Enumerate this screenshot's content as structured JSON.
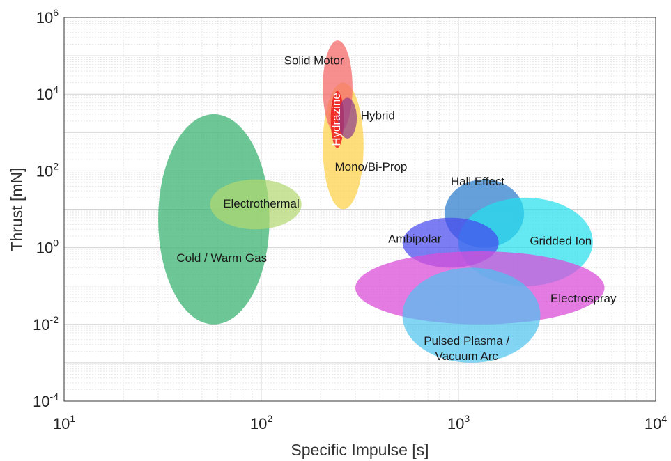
{
  "chart_data": {
    "type": "scatter",
    "title": "",
    "xlabel": "Specific Impulse [s]",
    "ylabel": "Thrust [mN]",
    "x_scale": "log",
    "y_scale": "log",
    "xlim": [
      10,
      10000
    ],
    "ylim": [
      0.0001,
      1000000
    ],
    "grid": true,
    "x_ticks": [
      {
        "base": "10",
        "exp": "1",
        "value": 10
      },
      {
        "base": "10",
        "exp": "2",
        "value": 100
      },
      {
        "base": "10",
        "exp": "3",
        "value": 1000
      },
      {
        "base": "10",
        "exp": "4",
        "value": 10000
      }
    ],
    "y_ticks": [
      {
        "base": "10",
        "exp": "-4",
        "value": 0.0001
      },
      {
        "base": "10",
        "exp": "-2",
        "value": 0.01
      },
      {
        "base": "10",
        "exp": "0",
        "value": 1
      },
      {
        "base": "10",
        "exp": "2",
        "value": 100
      },
      {
        "base": "10",
        "exp": "4",
        "value": 10000
      },
      {
        "base": "10",
        "exp": "6",
        "value": 1000000
      }
    ],
    "regions": [
      {
        "id": "cold-warm-gas",
        "label": [
          "Cold / Warm Gas"
        ],
        "color": "#3cb371",
        "opacity": 0.75,
        "isp_range": [
          30,
          110
        ],
        "thrust_range": [
          0.01,
          3000
        ],
        "label_isp": 63,
        "label_thrust": 0.5,
        "label_color": "#1a1a1a",
        "label_rotate": 0
      },
      {
        "id": "electrothermal",
        "label": [
          "Electrothermal"
        ],
        "color": "#b2d96f",
        "opacity": 0.7,
        "isp_range": [
          55,
          160
        ],
        "thrust_range": [
          3,
          60
        ],
        "label_isp": 100,
        "label_thrust": 13,
        "label_color": "#1a1a1a",
        "label_rotate": 0
      },
      {
        "id": "mono-bi-prop",
        "label": [
          "Mono/Bi-Prop"
        ],
        "color": "#fdd14f",
        "opacity": 0.75,
        "isp_range": [
          205,
          330
        ],
        "thrust_range": [
          10,
          20000
        ],
        "label_isp": 360,
        "label_thrust": 120,
        "label_color": "#1a1a1a",
        "label_rotate": 0
      },
      {
        "id": "solid-motor",
        "label": [
          "Solid Motor"
        ],
        "color": "#f46a6a",
        "opacity": 0.75,
        "isp_range": [
          205,
          290
        ],
        "thrust_range": [
          900,
          250000
        ],
        "label_isp": 185,
        "label_thrust": 70000,
        "label_color": "#1a1a1a",
        "label_rotate": 0
      },
      {
        "id": "hydrazine",
        "label": [
          "Hydrazine"
        ],
        "color": "#ee1c1c",
        "opacity": 0.85,
        "isp_range": [
          225,
          262
        ],
        "thrust_range": [
          400,
          12000
        ],
        "label_isp": 243,
        "label_thrust": 2200,
        "label_color": "#ffffff",
        "label_rotate": -90
      },
      {
        "id": "hybrid",
        "label": [
          "Hybrid"
        ],
        "color": "#8b3a8b",
        "opacity": 0.7,
        "isp_range": [
          245,
          305
        ],
        "thrust_range": [
          700,
          8000
        ],
        "label_isp": 390,
        "label_thrust": 2600,
        "label_color": "#1a1a1a",
        "label_rotate": 0
      },
      {
        "id": "hall-effect",
        "label": [
          "Hall Effect"
        ],
        "color": "#4a8fd4",
        "opacity": 0.85,
        "isp_range": [
          850,
          2150
        ],
        "thrust_range": [
          1,
          60
        ],
        "label_isp": 1250,
        "label_thrust": 50,
        "label_color": "#1a1a1a",
        "label_rotate": 0
      },
      {
        "id": "gridded-ion",
        "label": [
          "Gridded Ion"
        ],
        "color": "#22dfee",
        "opacity": 0.7,
        "isp_range": [
          1000,
          4800
        ],
        "thrust_range": [
          0.1,
          20
        ],
        "label_isp": 3300,
        "label_thrust": 1.4,
        "label_color": "#1a1a1a",
        "label_rotate": 0
      },
      {
        "id": "ambipolar",
        "label": [
          "Ambipolar"
        ],
        "color": "#4646ee",
        "opacity": 0.7,
        "isp_range": [
          520,
          1600
        ],
        "thrust_range": [
          0.3,
          6
        ],
        "label_isp": 600,
        "label_thrust": 1.6,
        "label_color": "#1a1a1a",
        "label_rotate": 0
      },
      {
        "id": "electrospray",
        "label": [
          "Electrospray"
        ],
        "color": "#d94fd9",
        "opacity": 0.75,
        "isp_range": [
          300,
          5500
        ],
        "thrust_range": [
          0.01,
          0.8
        ],
        "label_isp": 4300,
        "label_thrust": 0.045,
        "label_color": "#1a1a1a",
        "label_rotate": 0
      },
      {
        "id": "pulsed-plasma",
        "label": [
          "Pulsed Plasma /",
          "Vacuum Arc"
        ],
        "color": "#4fc3f0",
        "opacity": 0.7,
        "isp_range": [
          520,
          2600
        ],
        "thrust_range": [
          0.001,
          0.3
        ],
        "label_isp": 1100,
        "label_thrust": 0.0022,
        "label_color": "#1a1a1a",
        "label_rotate": 0
      }
    ]
  }
}
